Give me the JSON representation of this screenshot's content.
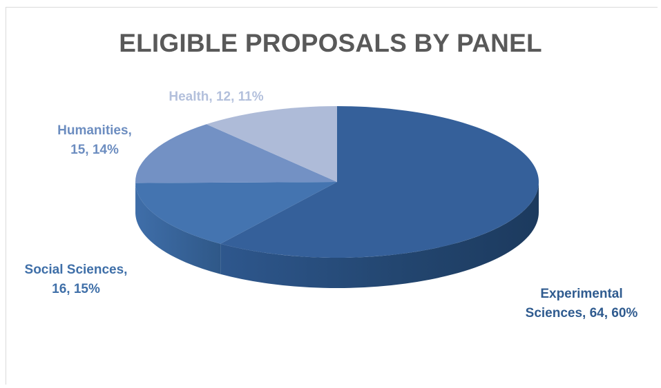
{
  "chart_data": {
    "type": "pie",
    "title": "ELIGIBLE PROPOSALS BY PANEL",
    "slices": [
      {
        "name": "Experimental Sciences",
        "value": 64,
        "percent": "60%",
        "label_lines": [
          "Experimental",
          "Sciences, 64, 60%"
        ],
        "color": "#35609a",
        "label_color": "#2f5b8f"
      },
      {
        "name": "Social Sciences",
        "value": 16,
        "percent": "15%",
        "label_lines": [
          "Social Sciences,",
          "16, 15%"
        ],
        "color": "#4474b0",
        "label_color": "#3f6fa8"
      },
      {
        "name": "Humanities",
        "value": 15,
        "percent": "14%",
        "label_lines": [
          "Humanities,",
          "15, 14%"
        ],
        "color": "#7391c4",
        "label_color": "#6c8dc0"
      },
      {
        "name": "Health",
        "value": 12,
        "percent": "11%",
        "label_lines": [
          "Health, 12, 11%"
        ],
        "color": "#aebbd8",
        "label_color": "#b3c0dc"
      }
    ]
  }
}
